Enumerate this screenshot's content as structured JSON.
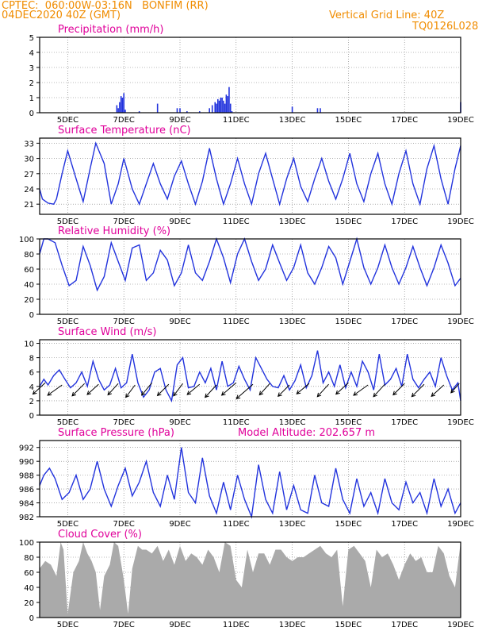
{
  "header": {
    "line1": "CPTEC:  060:00W-03:16N   BONFIM (RR)",
    "line2": "04DEC2020 40Z (GMT)",
    "right1": "Vertical Grid Line: 40Z",
    "right2": "TQ0126L028"
  },
  "colors": {
    "header": "#f08c00",
    "title": "#e0009a",
    "line": "#2233dd",
    "cloud": "#aaaaaa",
    "wind_arrow": "#000000"
  },
  "x_axis": {
    "ticks": [
      "5DEC",
      "7DEC",
      "9DEC",
      "11DEC",
      "13DEC",
      "15DEC",
      "17DEC",
      "19DEC"
    ],
    "tick_days": [
      1,
      3,
      5,
      7,
      9,
      11,
      13,
      15
    ],
    "xlim_days": [
      0,
      15
    ],
    "grid": true
  },
  "chart_data": [
    {
      "type": "bar",
      "title": "Precipitation (mm/h)",
      "ylim": [
        0,
        5
      ],
      "yticks": [
        "0",
        "1",
        "2",
        "3",
        "4",
        "5"
      ],
      "series": [
        {
          "x_days": [
            2.75,
            2.8,
            2.85,
            2.9,
            2.95,
            3.0,
            3.05,
            3.55,
            4.2,
            4.9,
            5.0,
            5.25,
            5.7,
            6.05,
            6.15,
            6.25,
            6.3,
            6.35,
            6.4,
            6.45,
            6.5,
            6.55,
            6.6,
            6.65,
            6.7,
            6.75,
            6.8,
            6.85,
            9.0,
            9.9,
            10.0,
            15.0
          ],
          "values": [
            0.5,
            0.3,
            0.7,
            1.1,
            1.0,
            1.3,
            0.2,
            0.1,
            0.6,
            0.3,
            0.3,
            0.1,
            0.1,
            0.3,
            0.5,
            0.7,
            0.6,
            0.9,
            0.8,
            1.0,
            1.0,
            0.8,
            0.6,
            1.2,
            1.1,
            1.7,
            0.6,
            0.1,
            0.4,
            0.3,
            0.3,
            0.7
          ]
        }
      ]
    },
    {
      "type": "line",
      "title": "Surface Temperature (nC)",
      "ylim": [
        19,
        34
      ],
      "yticks": [
        "21",
        "24",
        "27",
        "30",
        "33"
      ],
      "ytick_values": [
        21,
        24,
        27,
        30,
        33
      ],
      "series": [
        {
          "x_days": [
            0,
            0.1,
            0.3,
            0.5,
            0.6,
            0.8,
            1.0,
            1.3,
            1.55,
            1.8,
            2.0,
            2.3,
            2.55,
            2.8,
            3.0,
            3.3,
            3.55,
            3.8,
            4.05,
            4.3,
            4.55,
            4.8,
            5.05,
            5.3,
            5.55,
            5.8,
            6.05,
            6.3,
            6.55,
            6.8,
            7.05,
            7.3,
            7.55,
            7.8,
            8.05,
            8.3,
            8.55,
            8.8,
            9.05,
            9.3,
            9.55,
            9.8,
            10.05,
            10.3,
            10.55,
            10.8,
            11.05,
            11.3,
            11.55,
            11.8,
            12.05,
            12.3,
            12.55,
            12.8,
            13.05,
            13.3,
            13.55,
            13.8,
            14.05,
            14.3,
            14.55,
            14.8,
            15.0
          ],
          "values": [
            24,
            22,
            21.2,
            21,
            22,
            27,
            31.5,
            26,
            21.5,
            28,
            33,
            29,
            21,
            25,
            30,
            24,
            21,
            25,
            29,
            25,
            22,
            26.5,
            29.5,
            25,
            21,
            25.5,
            32,
            26,
            21,
            25,
            30,
            25,
            21,
            27,
            31,
            26,
            21,
            26,
            30,
            24.5,
            21.5,
            26,
            30,
            25.5,
            22,
            26,
            31,
            25,
            21.5,
            27,
            31,
            25,
            21,
            27,
            31.5,
            25,
            21,
            28,
            32.5,
            26,
            21,
            28,
            32.5
          ]
        }
      ]
    },
    {
      "type": "line",
      "title": "Relative Humidity (%)",
      "ylim": [
        0,
        100
      ],
      "yticks": [
        "0",
        "20",
        "40",
        "60",
        "80",
        "100"
      ],
      "ytick_values": [
        0,
        20,
        40,
        60,
        80,
        100
      ],
      "series": [
        {
          "x_days": [
            0,
            0.15,
            0.3,
            0.55,
            0.8,
            1.05,
            1.3,
            1.55,
            1.8,
            2.05,
            2.3,
            2.55,
            2.8,
            3.05,
            3.3,
            3.55,
            3.8,
            4.05,
            4.3,
            4.55,
            4.8,
            5.05,
            5.3,
            5.55,
            5.8,
            6.05,
            6.3,
            6.55,
            6.8,
            7.05,
            7.3,
            7.55,
            7.8,
            8.05,
            8.3,
            8.55,
            8.8,
            9.05,
            9.3,
            9.55,
            9.8,
            10.05,
            10.3,
            10.55,
            10.8,
            11.05,
            11.3,
            11.55,
            11.8,
            12.05,
            12.3,
            12.55,
            12.8,
            13.05,
            13.3,
            13.55,
            13.8,
            14.05,
            14.3,
            14.55,
            14.8,
            15.0
          ],
          "values": [
            80,
            100,
            100,
            95,
            65,
            38,
            45,
            90,
            65,
            32,
            50,
            95,
            70,
            45,
            88,
            92,
            45,
            55,
            85,
            72,
            38,
            55,
            92,
            55,
            45,
            70,
            100,
            75,
            42,
            80,
            100,
            70,
            45,
            60,
            92,
            68,
            45,
            62,
            92,
            55,
            40,
            62,
            90,
            75,
            40,
            70,
            100,
            62,
            40,
            62,
            92,
            62,
            40,
            62,
            90,
            62,
            38,
            62,
            92,
            68,
            38,
            48
          ]
        }
      ]
    },
    {
      "type": "line",
      "title": "Surface Wind (m/s)",
      "ylim": [
        0,
        10.5
      ],
      "yticks": [
        "0",
        "2",
        "4",
        "6",
        "8",
        "10"
      ],
      "ytick_values": [
        0,
        2,
        4,
        6,
        8,
        10
      ],
      "series": [
        {
          "x_days": [
            0,
            0.15,
            0.3,
            0.5,
            0.7,
            0.9,
            1.1,
            1.3,
            1.5,
            1.7,
            1.9,
            2.1,
            2.3,
            2.5,
            2.7,
            2.9,
            3.1,
            3.3,
            3.5,
            3.7,
            3.9,
            4.1,
            4.3,
            4.5,
            4.7,
            4.9,
            5.1,
            5.3,
            5.5,
            5.7,
            5.9,
            6.1,
            6.3,
            6.5,
            6.7,
            6.9,
            7.1,
            7.3,
            7.5,
            7.7,
            7.9,
            8.1,
            8.3,
            8.5,
            8.7,
            8.9,
            9.1,
            9.3,
            9.5,
            9.7,
            9.9,
            10.1,
            10.3,
            10.5,
            10.7,
            10.9,
            11.1,
            11.3,
            11.5,
            11.7,
            11.9,
            12.1,
            12.3,
            12.5,
            12.7,
            12.9,
            13.1,
            13.3,
            13.5,
            13.7,
            13.9,
            14.1,
            14.3,
            14.5,
            14.7,
            14.9,
            15.0
          ],
          "values": [
            4.0,
            5.0,
            4.2,
            5.5,
            6.3,
            5.0,
            3.8,
            4.5,
            6.0,
            4.0,
            7.5,
            5.0,
            3.5,
            4.2,
            6.5,
            3.8,
            4.5,
            8.5,
            4.5,
            2.5,
            3.5,
            6.0,
            6.5,
            3.5,
            2.0,
            7.0,
            8.0,
            3.8,
            4.0,
            6.0,
            4.5,
            6.5,
            3.5,
            7.5,
            4.0,
            4.5,
            6.8,
            5.0,
            3.5,
            8.0,
            6.5,
            5.0,
            4.0,
            3.8,
            5.5,
            3.5,
            4.8,
            7.0,
            3.8,
            5.5,
            9.0,
            4.5,
            6.0,
            4.0,
            7.0,
            3.8,
            6.0,
            4.0,
            7.5,
            6.0,
            3.5,
            8.5,
            4.2,
            5.0,
            6.5,
            4.0,
            8.5,
            5.0,
            3.8,
            5.0,
            6.0,
            4.0,
            8.0,
            5.5,
            3.5,
            4.5,
            2.0
          ]
        }
      ],
      "arrows": [
        {
          "x_day": 0.2,
          "speed": 4.5,
          "dx": -0.6,
          "dy": 0.55
        },
        {
          "x_day": 0.8,
          "speed": 4.2,
          "dx": -0.7,
          "dy": 0.5
        },
        {
          "x_day": 1.6,
          "speed": 4.4,
          "dx": -0.6,
          "dy": 0.6
        },
        {
          "x_day": 2.1,
          "speed": 4.3,
          "dx": -0.55,
          "dy": 0.5
        },
        {
          "x_day": 2.8,
          "speed": 4.4,
          "dx": -0.5,
          "dy": 0.55
        },
        {
          "x_day": 3.4,
          "speed": 4.2,
          "dx": -0.45,
          "dy": 0.6
        },
        {
          "x_day": 4.0,
          "speed": 4.5,
          "dx": -0.5,
          "dy": 0.6
        },
        {
          "x_day": 4.6,
          "speed": 4.3,
          "dx": -0.55,
          "dy": 0.55
        },
        {
          "x_day": 5.1,
          "speed": 4.4,
          "dx": -0.45,
          "dy": 0.6
        },
        {
          "x_day": 5.7,
          "speed": 4.3,
          "dx": -0.6,
          "dy": 0.5
        },
        {
          "x_day": 6.3,
          "speed": 4.2,
          "dx": -0.55,
          "dy": 0.6
        },
        {
          "x_day": 7.0,
          "speed": 4.5,
          "dx": -0.7,
          "dy": 0.6
        },
        {
          "x_day": 7.6,
          "speed": 4.3,
          "dx": -0.8,
          "dy": 0.7
        },
        {
          "x_day": 8.2,
          "speed": 4.4,
          "dx": -0.5,
          "dy": 0.55
        },
        {
          "x_day": 8.9,
          "speed": 4.2,
          "dx": -0.55,
          "dy": 0.55
        },
        {
          "x_day": 9.6,
          "speed": 4.4,
          "dx": -0.6,
          "dy": 0.5
        },
        {
          "x_day": 10.3,
          "speed": 4.3,
          "dx": -0.55,
          "dy": 0.6
        },
        {
          "x_day": 11.0,
          "speed": 4.5,
          "dx": -0.6,
          "dy": 0.55
        },
        {
          "x_day": 11.7,
          "speed": 4.2,
          "dx": -0.7,
          "dy": 0.5
        },
        {
          "x_day": 12.3,
          "speed": 4.3,
          "dx": -0.55,
          "dy": 0.6
        },
        {
          "x_day": 13.0,
          "speed": 4.4,
          "dx": -0.55,
          "dy": 0.55
        },
        {
          "x_day": 13.7,
          "speed": 4.3,
          "dx": -0.6,
          "dy": 0.6
        },
        {
          "x_day": 14.4,
          "speed": 4.2,
          "dx": -0.6,
          "dy": 0.55
        },
        {
          "x_day": 14.95,
          "speed": 4.4,
          "dx": -0.4,
          "dy": 0.45
        }
      ]
    },
    {
      "type": "line",
      "title": "Surface Pressure (hPa)",
      "annotation": "Model Altitude: 202.657  m",
      "ylim": [
        982,
        993
      ],
      "yticks": [
        "982",
        "984",
        "986",
        "988",
        "990",
        "992"
      ],
      "ytick_values": [
        982,
        984,
        986,
        988,
        990,
        992
      ],
      "series": [
        {
          "x_days": [
            0,
            0.15,
            0.35,
            0.55,
            0.8,
            1.05,
            1.3,
            1.55,
            1.8,
            2.05,
            2.3,
            2.55,
            2.8,
            3.05,
            3.3,
            3.55,
            3.8,
            4.05,
            4.3,
            4.55,
            4.8,
            5.05,
            5.3,
            5.55,
            5.8,
            6.05,
            6.3,
            6.55,
            6.8,
            7.05,
            7.3,
            7.55,
            7.8,
            8.05,
            8.3,
            8.55,
            8.8,
            9.05,
            9.3,
            9.55,
            9.8,
            10.05,
            10.3,
            10.55,
            10.8,
            11.05,
            11.3,
            11.55,
            11.8,
            12.05,
            12.3,
            12.55,
            12.8,
            13.05,
            13.3,
            13.55,
            13.8,
            14.05,
            14.3,
            14.55,
            14.8,
            15.0
          ],
          "values": [
            986.5,
            988.0,
            989.0,
            987.5,
            984.5,
            985.5,
            988.0,
            984.5,
            986.0,
            990.0,
            986.0,
            983.5,
            986.5,
            989.0,
            985.0,
            987.0,
            990.0,
            985.5,
            983.5,
            988.0,
            984.5,
            992.0,
            985.5,
            984.0,
            990.5,
            985.0,
            982.5,
            987.0,
            983.0,
            988.0,
            984.5,
            981.5,
            989.5,
            984.5,
            982.5,
            988.5,
            983.0,
            986.5,
            983.0,
            982.5,
            988.0,
            984.0,
            983.5,
            989.0,
            984.5,
            982.5,
            987.5,
            983.5,
            985.5,
            982.5,
            987.5,
            984.0,
            983.0,
            987.0,
            984.0,
            985.5,
            982.5,
            987.5,
            983.5,
            986.0,
            982.5,
            984.0
          ]
        }
      ]
    },
    {
      "type": "area",
      "title": "Cloud Cover (%)",
      "ylim": [
        0,
        100
      ],
      "yticks": [
        "0",
        "20",
        "40",
        "60",
        "80",
        "100"
      ],
      "ytick_values": [
        0,
        20,
        40,
        60,
        80,
        100
      ],
      "series": [
        {
          "x_days": [
            0,
            0.2,
            0.4,
            0.6,
            0.75,
            0.85,
            1.0,
            1.2,
            1.4,
            1.55,
            1.7,
            1.85,
            2.0,
            2.15,
            2.3,
            2.5,
            2.65,
            2.8,
            3.0,
            3.15,
            3.3,
            3.5,
            3.65,
            3.8,
            4.0,
            4.2,
            4.4,
            4.6,
            4.8,
            5.0,
            5.2,
            5.4,
            5.6,
            5.8,
            6.0,
            6.2,
            6.4,
            6.6,
            6.8,
            7.0,
            7.2,
            7.4,
            7.6,
            7.8,
            8.0,
            8.2,
            8.4,
            8.6,
            8.8,
            9.0,
            9.2,
            9.4,
            9.6,
            9.8,
            10.0,
            10.2,
            10.4,
            10.6,
            10.8,
            11.0,
            11.2,
            11.4,
            11.6,
            11.8,
            12.0,
            12.2,
            12.4,
            12.6,
            12.8,
            13.0,
            13.2,
            13.4,
            13.6,
            13.8,
            14.0,
            14.2,
            14.4,
            14.6,
            14.8,
            15.0
          ],
          "values": [
            65,
            75,
            70,
            55,
            100,
            90,
            5,
            60,
            75,
            100,
            85,
            75,
            60,
            10,
            55,
            70,
            100,
            95,
            50,
            5,
            65,
            95,
            90,
            90,
            85,
            95,
            75,
            90,
            70,
            95,
            75,
            85,
            80,
            70,
            90,
            80,
            60,
            100,
            95,
            50,
            40,
            90,
            60,
            85,
            85,
            70,
            90,
            90,
            80,
            75,
            80,
            80,
            85,
            90,
            95,
            85,
            80,
            90,
            15,
            90,
            95,
            85,
            75,
            40,
            90,
            80,
            85,
            70,
            50,
            70,
            85,
            75,
            80,
            60,
            60,
            95,
            85,
            55,
            40,
            100
          ]
        }
      ]
    }
  ]
}
